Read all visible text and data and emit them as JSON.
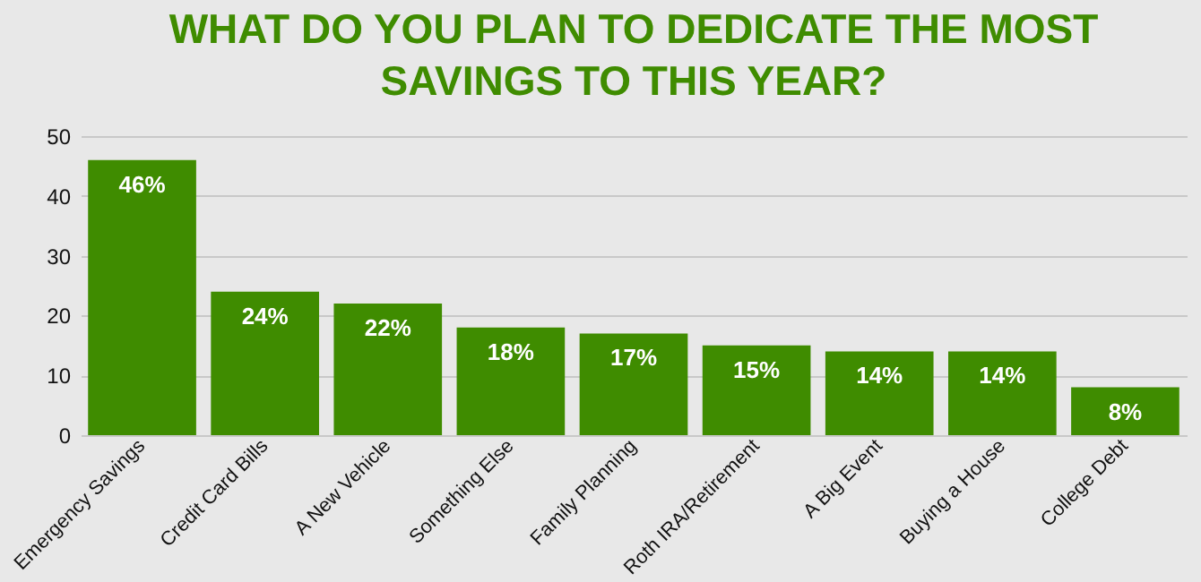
{
  "chart_data": {
    "type": "bar",
    "title": "WHAT DO YOU PLAN TO DEDICATE THE MOST SAVINGS TO THIS YEAR?",
    "categories": [
      "Emergency Savings",
      "Credit Card Bills",
      "A New Vehicle",
      "Something Else",
      "Family Planning",
      "Roth IRA/Retirement",
      "A Big Event",
      "Buying a House",
      "College Debt"
    ],
    "values": [
      46,
      24,
      22,
      18,
      17,
      15,
      14,
      14,
      8
    ],
    "value_labels": [
      "46%",
      "24%",
      "22%",
      "18%",
      "17%",
      "15%",
      "14%",
      "14%",
      "8%"
    ],
    "color": "#3f8c00",
    "ylim": [
      0,
      50
    ],
    "yticks": [
      0,
      10,
      20,
      30,
      40,
      50
    ],
    "grid": "y"
  }
}
